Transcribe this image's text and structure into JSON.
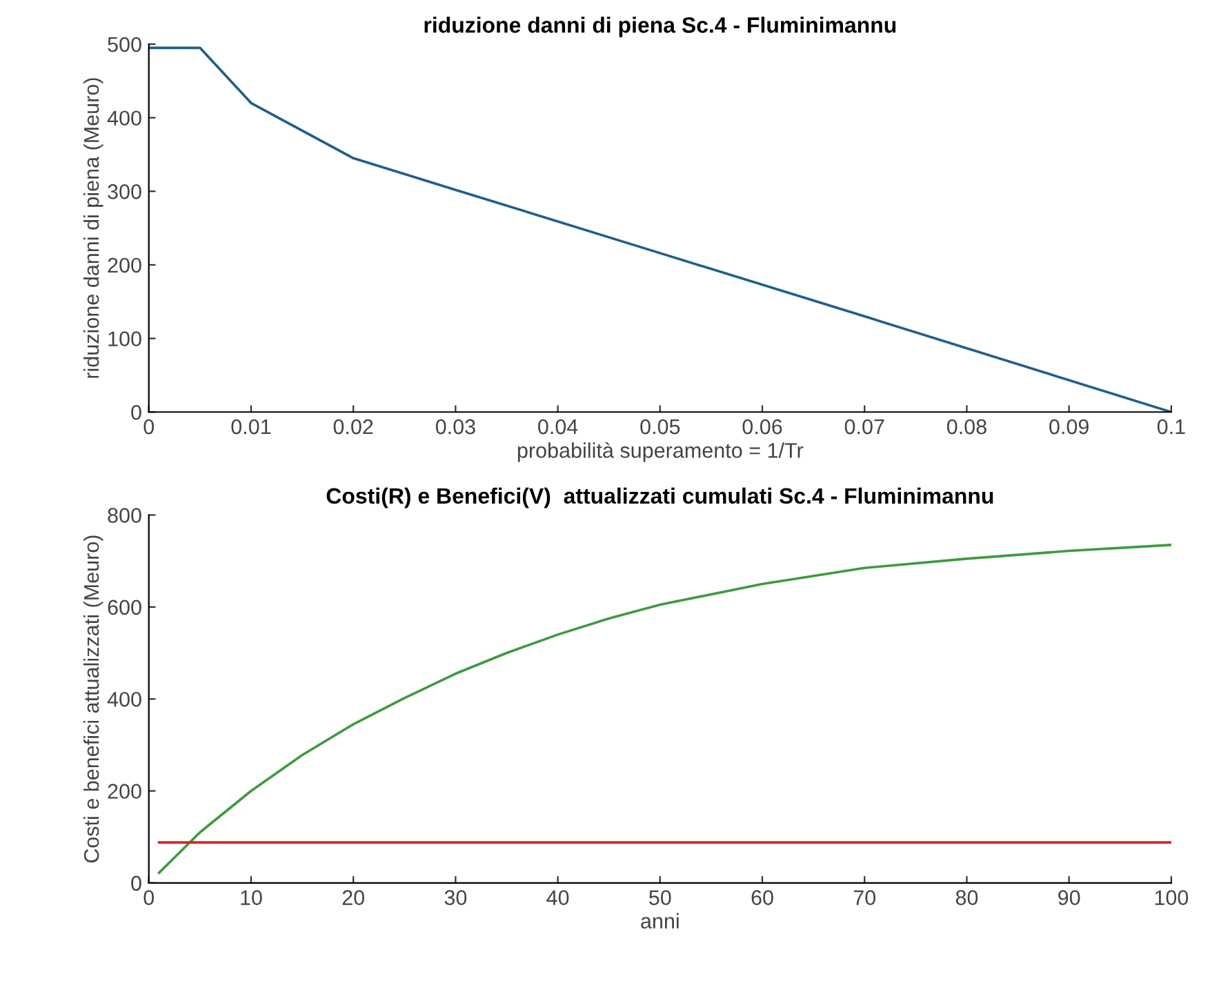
{
  "chart_data": [
    {
      "type": "line",
      "title": "riduzione danni di piena Sc.4 - Fluminimannu",
      "xlabel": "probabilità superamento = 1/Tr",
      "ylabel": "riduzione danni di piena (Meuro)",
      "x": [
        0,
        0.005,
        0.01,
        0.02,
        0.03,
        0.05,
        0.07,
        0.1
      ],
      "series": [
        {
          "color": "#1f5f8b",
          "values": [
            495,
            495,
            420,
            345,
            302,
            216,
            130,
            0
          ]
        }
      ],
      "xlim": [
        0,
        0.1
      ],
      "xticks": [
        0,
        0.01,
        0.02,
        0.03,
        0.04,
        0.05,
        0.06,
        0.07,
        0.08,
        0.09,
        0.1
      ],
      "ylim": [
        0,
        500
      ],
      "yticks": [
        0,
        100,
        200,
        300,
        400,
        500
      ],
      "grid": false,
      "legend": false,
      "marker": "none",
      "line_style": "solid"
    },
    {
      "type": "line",
      "title": "Costi(R) e Benefici(V)  attualizzati cumulati Sc.4 - Fluminimannu",
      "xlabel": "anni",
      "ylabel": "Costi e benefici attualizzati (Meuro)",
      "x": [
        1,
        5,
        10,
        15,
        20,
        25,
        30,
        35,
        40,
        45,
        50,
        60,
        70,
        80,
        90,
        100
      ],
      "series": [
        {
          "color": "#3f9a3f",
          "values": [
            22,
            110,
            200,
            278,
            345,
            402,
            455,
            500,
            540,
            575,
            605,
            650,
            685,
            705,
            722,
            735
          ]
        },
        {
          "color": "#d62728",
          "values": [
            88,
            88,
            88,
            88,
            88,
            88,
            88,
            88,
            88,
            88,
            88,
            88,
            88,
            88,
            88,
            88
          ]
        }
      ],
      "xlim": [
        0,
        100
      ],
      "xticks": [
        0,
        10,
        20,
        30,
        40,
        50,
        60,
        70,
        80,
        90,
        100
      ],
      "ylim": [
        0,
        800
      ],
      "yticks": [
        0,
        200,
        400,
        600,
        800
      ],
      "grid": false,
      "legend": false,
      "marker": "none",
      "line_style": "solid"
    }
  ]
}
